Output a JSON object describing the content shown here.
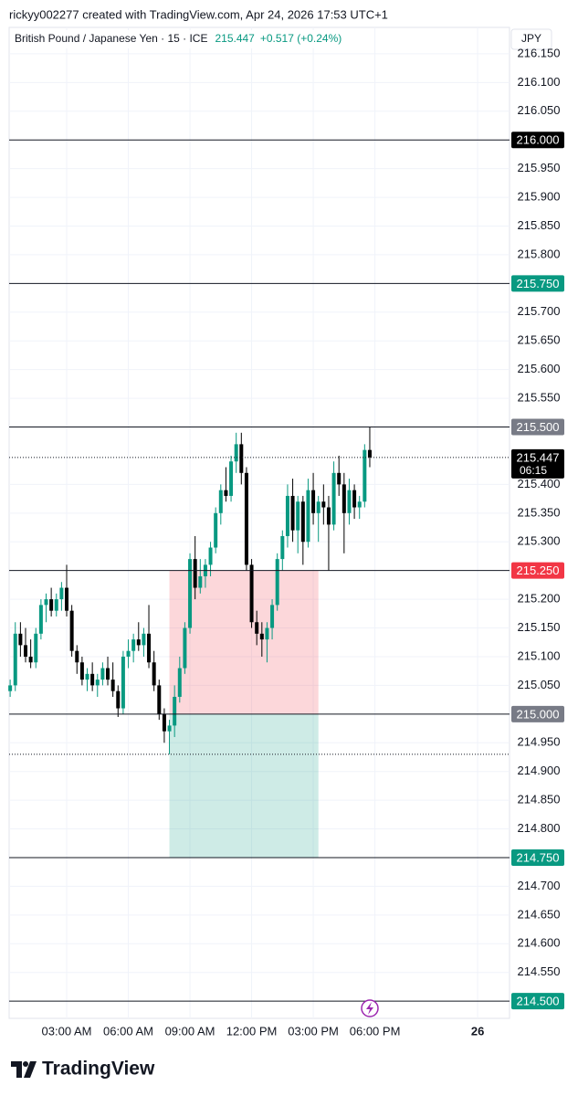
{
  "header": {
    "attribution": "rickyy002277 created with TradingView.com, Apr 24, 2026 17:53 UTC+1",
    "symbol": "British Pound / Japanese Yen · 15 · ICE",
    "last": "215.447",
    "change": "+0.517 (+0.24%)",
    "currency": "JPY"
  },
  "chart_data": {
    "type": "candlestick",
    "x": [
      0.25,
      0.5,
      0.75,
      1,
      1.25,
      1.5,
      1.75,
      2,
      2.25,
      2.5,
      2.75,
      3,
      3.25,
      3.5,
      3.75,
      4,
      4.25,
      4.5,
      4.75,
      5,
      5.25,
      5.5,
      5.75,
      6,
      6.25,
      6.5,
      6.75,
      7,
      7.25,
      7.5,
      7.75,
      8,
      8.25,
      8.5,
      8.75,
      9,
      9.25,
      9.5,
      9.75,
      10,
      10.25,
      10.5,
      10.75,
      11,
      11.25,
      11.5,
      11.75,
      12,
      12.25,
      12.5,
      12.75,
      13,
      13.25,
      13.5,
      13.75,
      14,
      14.25,
      14.5,
      14.75,
      15,
      15.25,
      15.5,
      15.75,
      16,
      16.25,
      16.5,
      16.75,
      17,
      17.25,
      17.5,
      17.75
    ],
    "open": [
      215.04,
      215.05,
      215.14,
      215.12,
      215.1,
      215.09,
      215.14,
      215.19,
      215.2,
      215.18,
      215.2,
      215.22,
      215.18,
      215.11,
      215.09,
      215.06,
      215.07,
      215.05,
      215.06,
      215.08,
      215.06,
      215.04,
      215.01,
      215.1,
      215.11,
      215.13,
      215.12,
      215.14,
      215.09,
      215.05,
      215.0,
      214.97,
      214.98,
      215.03,
      215.08,
      215.15,
      215.27,
      215.22,
      215.24,
      215.26,
      215.29,
      215.35,
      215.39,
      215.38,
      215.44,
      215.47,
      215.42,
      215.26,
      215.16,
      215.14,
      215.13,
      215.15,
      215.19,
      215.27,
      215.31,
      215.38,
      215.32,
      215.37,
      215.3,
      215.39,
      215.35,
      215.37,
      215.36,
      215.33,
      215.42,
      215.4,
      215.35,
      215.39,
      215.36,
      215.37,
      215.46
    ],
    "high": [
      215.06,
      215.16,
      215.16,
      215.15,
      215.13,
      215.15,
      215.2,
      215.21,
      215.22,
      215.21,
      215.23,
      215.26,
      215.19,
      215.12,
      215.1,
      215.08,
      215.09,
      215.07,
      215.09,
      215.1,
      215.09,
      215.05,
      215.11,
      215.13,
      215.14,
      215.16,
      215.15,
      215.19,
      215.11,
      215.06,
      215.01,
      214.99,
      215.05,
      215.1,
      215.16,
      215.28,
      215.31,
      215.27,
      215.27,
      215.3,
      215.36,
      215.4,
      215.43,
      215.45,
      215.49,
      215.49,
      215.43,
      215.27,
      215.18,
      215.16,
      215.16,
      215.2,
      215.28,
      215.32,
      215.4,
      215.41,
      215.38,
      215.38,
      215.41,
      215.42,
      215.38,
      215.4,
      215.38,
      215.44,
      215.45,
      215.42,
      215.41,
      215.4,
      215.38,
      215.47,
      215.5
    ],
    "low": [
      215.03,
      215.04,
      215.1,
      215.09,
      215.08,
      215.08,
      215.13,
      215.16,
      215.17,
      215.17,
      215.18,
      215.17,
      215.1,
      215.07,
      215.05,
      215.04,
      215.04,
      215.03,
      215.05,
      215.05,
      215.03,
      214.995,
      215.0,
      215.08,
      215.09,
      215.11,
      215.1,
      215.08,
      215.04,
      214.99,
      214.95,
      214.93,
      214.96,
      215.02,
      215.07,
      215.14,
      215.2,
      215.21,
      215.22,
      215.24,
      215.28,
      215.33,
      215.37,
      215.37,
      215.42,
      215.4,
      215.25,
      215.15,
      215.12,
      215.1,
      215.09,
      215.13,
      215.18,
      215.25,
      215.29,
      215.3,
      215.28,
      215.26,
      215.29,
      215.33,
      215.3,
      215.33,
      215.25,
      215.32,
      215.38,
      215.28,
      215.33,
      215.34,
      215.34,
      215.36,
      215.43
    ],
    "close": [
      215.05,
      215.14,
      215.12,
      215.1,
      215.09,
      215.14,
      215.19,
      215.2,
      215.18,
      215.2,
      215.22,
      215.18,
      215.11,
      215.09,
      215.06,
      215.07,
      215.05,
      215.06,
      215.08,
      215.06,
      215.04,
      215.01,
      215.1,
      215.11,
      215.13,
      215.12,
      215.14,
      215.09,
      215.05,
      215.0,
      214.97,
      214.98,
      215.03,
      215.08,
      215.15,
      215.27,
      215.22,
      215.24,
      215.26,
      215.29,
      215.35,
      215.39,
      215.38,
      215.44,
      215.47,
      215.42,
      215.26,
      215.16,
      215.14,
      215.13,
      215.15,
      215.19,
      215.27,
      215.31,
      215.38,
      215.32,
      215.37,
      215.3,
      215.39,
      215.35,
      215.37,
      215.36,
      215.33,
      215.42,
      215.4,
      215.35,
      215.39,
      215.36,
      215.37,
      215.46,
      215.447
    ],
    "up_color": "#089981",
    "down_color": "#000000",
    "xlim": [
      0.2,
      24.55
    ],
    "xticks": [
      {
        "value": 3,
        "label": "03:00 AM"
      },
      {
        "value": 6,
        "label": "06:00 AM"
      },
      {
        "value": 9,
        "label": "09:00 AM"
      },
      {
        "value": 12,
        "label": "12:00 PM"
      },
      {
        "value": 15,
        "label": "03:00 PM"
      },
      {
        "value": 18,
        "label": "06:00 PM"
      },
      {
        "value": 23,
        "label": "26"
      }
    ],
    "ylim": [
      214.47,
      216.196
    ],
    "yticks": [
      {
        "value": 216.15,
        "label": "216.150"
      },
      {
        "value": 216.1,
        "label": "216.100"
      },
      {
        "value": 216.05,
        "label": "216.050"
      },
      {
        "value": 215.95,
        "label": "215.950"
      },
      {
        "value": 215.9,
        "label": "215.900"
      },
      {
        "value": 215.85,
        "label": "215.850"
      },
      {
        "value": 215.8,
        "label": "215.800"
      },
      {
        "value": 215.7,
        "label": "215.700"
      },
      {
        "value": 215.65,
        "label": "215.650"
      },
      {
        "value": 215.6,
        "label": "215.600"
      },
      {
        "value": 215.55,
        "label": "215.550"
      },
      {
        "value": 215.4,
        "label": "215.400"
      },
      {
        "value": 215.35,
        "label": "215.350"
      },
      {
        "value": 215.3,
        "label": "215.300"
      },
      {
        "value": 215.2,
        "label": "215.200"
      },
      {
        "value": 215.15,
        "label": "215.150"
      },
      {
        "value": 215.1,
        "label": "215.100"
      },
      {
        "value": 215.05,
        "label": "215.050"
      },
      {
        "value": 214.95,
        "label": "214.950"
      },
      {
        "value": 214.9,
        "label": "214.900"
      },
      {
        "value": 214.85,
        "label": "214.850"
      },
      {
        "value": 214.8,
        "label": "214.800"
      },
      {
        "value": 214.7,
        "label": "214.700"
      },
      {
        "value": 214.65,
        "label": "214.650"
      },
      {
        "value": 214.6,
        "label": "214.600"
      },
      {
        "value": 214.55,
        "label": "214.550"
      }
    ],
    "grid": true,
    "levels": [
      {
        "value": 216.0,
        "label": "216.000",
        "color": "#000000"
      },
      {
        "value": 215.75,
        "label": "215.750",
        "color": "#089981"
      },
      {
        "value": 215.5,
        "label": "215.500",
        "color": "#787b86"
      },
      {
        "value": 215.25,
        "label": "215.250",
        "color": "#f23645"
      },
      {
        "value": 215.0,
        "label": "215.000",
        "color": "#787b86"
      },
      {
        "value": 214.75,
        "label": "214.750",
        "color": "#089981"
      },
      {
        "value": 214.5,
        "label": "214.500",
        "color": "#089981"
      }
    ],
    "current_price": {
      "value": 215.447,
      "label": "215.447",
      "countdown": "06:15"
    },
    "reference_line": 214.93,
    "position": {
      "start": 8,
      "end": 15.25,
      "stop": 215.25,
      "entry": 215.0,
      "target": 214.75,
      "stop_color": "#f23645",
      "target_color": "#089981"
    }
  },
  "footer": {
    "brand": "TradingView"
  }
}
